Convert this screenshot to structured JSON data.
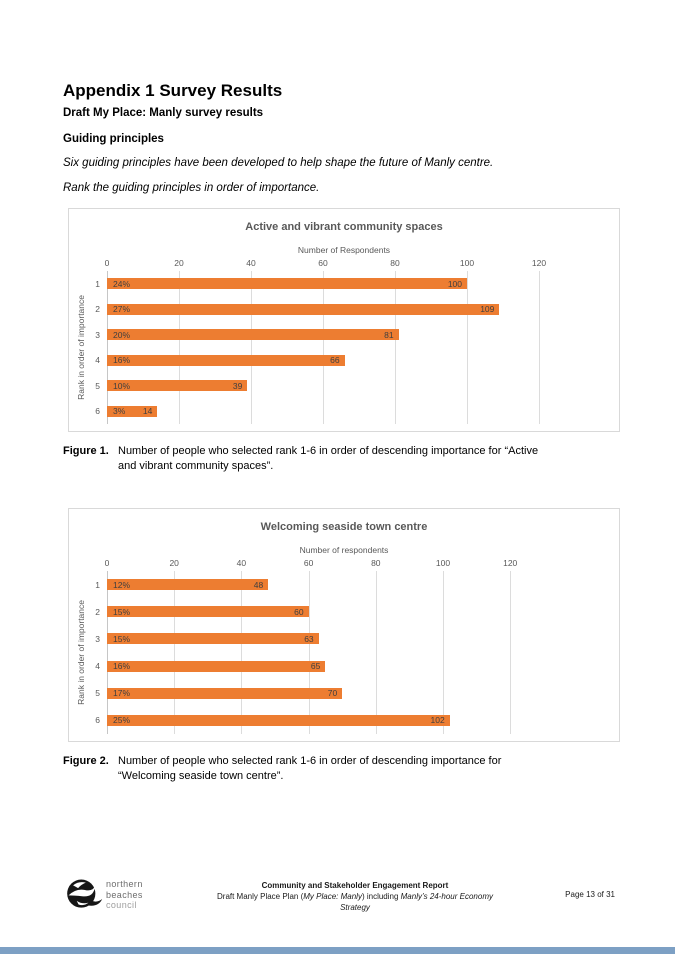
{
  "page": {
    "title": "Appendix 1 Survey Results",
    "subtitle": "Draft My Place: Manly survey results",
    "section_heading": "Guiding principles",
    "intro_line1": "Six guiding principles have been developed to help shape the future of Manly centre.",
    "intro_line2": "Rank the guiding principles in order of importance."
  },
  "chart_data": [
    {
      "type": "bar",
      "orientation": "horizontal",
      "title": "Active and vibrant community spaces",
      "xlabel": "Number of Respondents",
      "ylabel": "Rank in order of importance",
      "categories": [
        "1",
        "2",
        "3",
        "4",
        "5",
        "6"
      ],
      "values": [
        100,
        109,
        81,
        66,
        39,
        14
      ],
      "percent_labels": [
        "24%",
        "27%",
        "20%",
        "16%",
        "10%",
        "3%"
      ],
      "xticks": [
        0,
        20,
        40,
        60,
        80,
        100,
        120
      ],
      "xlim": [
        0,
        140
      ],
      "grid": true,
      "legend": "none",
      "bar_color": "#ED7D31"
    },
    {
      "type": "bar",
      "orientation": "horizontal",
      "title": "Welcoming seaside town centre",
      "xlabel": "Number of respondents",
      "ylabel": "Rank in order of importance",
      "categories": [
        "1",
        "2",
        "3",
        "4",
        "5",
        "6"
      ],
      "values": [
        48,
        60,
        63,
        65,
        70,
        102
      ],
      "percent_labels": [
        "12%",
        "15%",
        "15%",
        "16%",
        "17%",
        "25%"
      ],
      "xticks": [
        0,
        20,
        40,
        60,
        80,
        100,
        120
      ],
      "xlim": [
        0,
        150
      ],
      "grid": true,
      "legend": "none",
      "bar_color": "#ED7D31"
    }
  ],
  "figures": [
    {
      "label": "Figure 1.",
      "lines": [
        "Number of people who selected rank 1-6 in order of descending importance for “Active",
        "and vibrant community spaces”."
      ]
    },
    {
      "label": "Figure 2.",
      "lines": [
        "Number of people who selected rank 1-6 in order of descending importance for",
        "“Welcoming seaside town centre”."
      ]
    }
  ],
  "footer": {
    "brand_line1": "northern",
    "brand_line2": "beaches",
    "brand_line3": "council",
    "center_line1": "Community and Stakeholder Engagement Report",
    "center_line2_segments": [
      {
        "text": "Draft Manly Place Plan (",
        "italic": false
      },
      {
        "text": "My Place: Manly",
        "italic": true
      },
      {
        "text": ") including ",
        "italic": false
      },
      {
        "text": "Manly’s 24-hour Economy",
        "italic": true
      }
    ],
    "center_line3": "Strategy",
    "page_number": "Page 13 of 31"
  },
  "colors": {
    "bar": "#ED7D31",
    "gridline": "#DCDCDC",
    "axis_text": "#595959",
    "bottom_bar": "#7DA0C4"
  }
}
